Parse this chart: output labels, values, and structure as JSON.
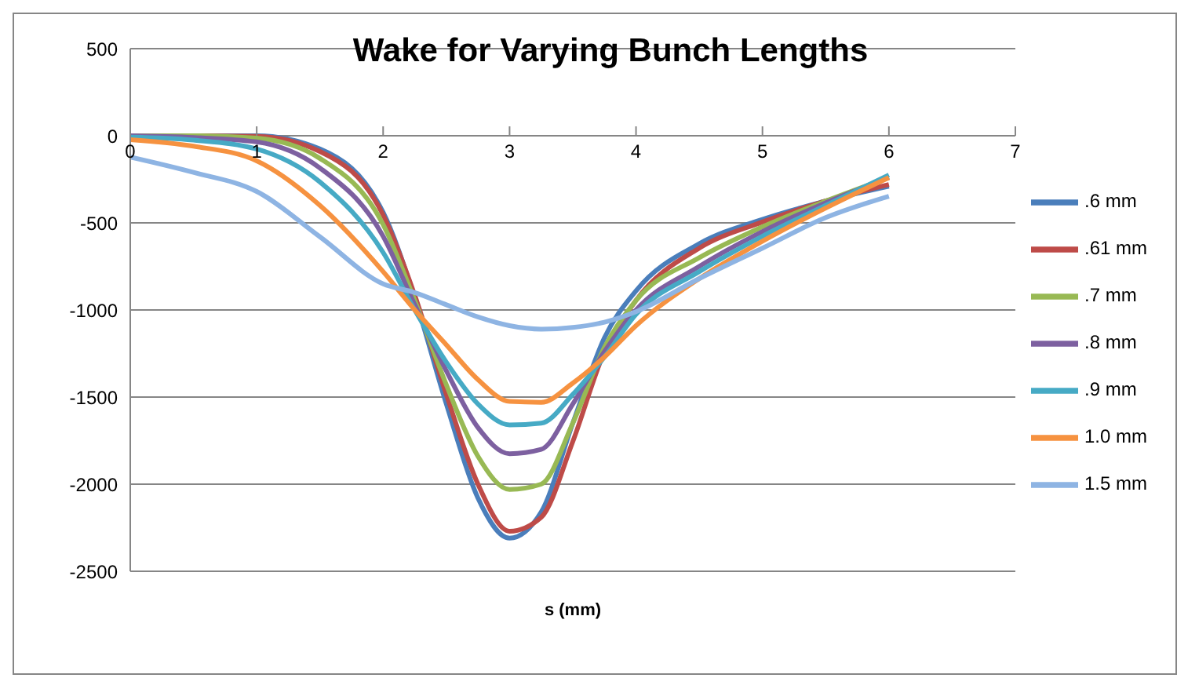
{
  "chart_data": {
    "type": "line",
    "title": "Wake for Varying Bunch Lengths",
    "xlabel": "s (mm)",
    "x": [
      0,
      0.5,
      1,
      1.5,
      2,
      2.25,
      2.5,
      2.75,
      3,
      3.25,
      3.5,
      3.75,
      4,
      4.5,
      5,
      5.5,
      6
    ],
    "series": [
      {
        "name": ".6 mm",
        "color": "#4a7ebb",
        "values": [
          0,
          0,
          0,
          -76,
          -440,
          -930,
          -1540,
          -2080,
          -2310,
          -2160,
          -1650,
          -1160,
          -890,
          -620,
          -480,
          -375,
          -290
        ]
      },
      {
        "name": ".61 mm",
        "color": "#be4b48",
        "values": [
          0,
          0,
          -3,
          -90,
          -455,
          -915,
          -1485,
          -2000,
          -2270,
          -2190,
          -1755,
          -1240,
          -945,
          -645,
          -495,
          -375,
          -280
        ]
      },
      {
        "name": ".7 mm",
        "color": "#98b954",
        "values": [
          0,
          0,
          -14,
          -130,
          -510,
          -945,
          -1430,
          -1840,
          -2030,
          -2000,
          -1650,
          -1215,
          -945,
          -700,
          -523,
          -375,
          -240
        ]
      },
      {
        "name": ".8 mm",
        "color": "#7d60a0",
        "values": [
          0,
          -10,
          -35,
          -185,
          -577,
          -970,
          -1350,
          -1675,
          -1825,
          -1800,
          -1540,
          -1240,
          -1000,
          -750,
          -550,
          -385,
          -240
        ]
      },
      {
        "name": ".9 mm",
        "color": "#46aac5",
        "values": [
          -8,
          -25,
          -76,
          -265,
          -670,
          -1000,
          -1300,
          -1540,
          -1660,
          -1650,
          -1485,
          -1270,
          -1025,
          -780,
          -577,
          -400,
          -225
        ]
      },
      {
        "name": "1.0 mm",
        "color": "#f69240",
        "values": [
          -22,
          -60,
          -144,
          -400,
          -780,
          -1000,
          -1200,
          -1400,
          -1525,
          -1530,
          -1420,
          -1270,
          -1090,
          -820,
          -605,
          -415,
          -240
        ]
      },
      {
        "name": "1.5 mm",
        "color": "#8eb4e3",
        "values": [
          -122,
          -210,
          -320,
          -580,
          -850,
          -900,
          -970,
          -1040,
          -1090,
          -1110,
          -1100,
          -1070,
          -1010,
          -820,
          -645,
          -470,
          -347
        ]
      }
    ],
    "xlim": [
      0,
      7
    ],
    "xticks": [
      0,
      1,
      2,
      3,
      4,
      5,
      6,
      7
    ],
    "ylim": [
      -2500,
      500
    ],
    "yticks": [
      -2500,
      -2000,
      -1500,
      -1000,
      -500,
      0,
      500
    ],
    "grid": "y",
    "legend": "right",
    "marker": "none",
    "line_style": "solid"
  }
}
